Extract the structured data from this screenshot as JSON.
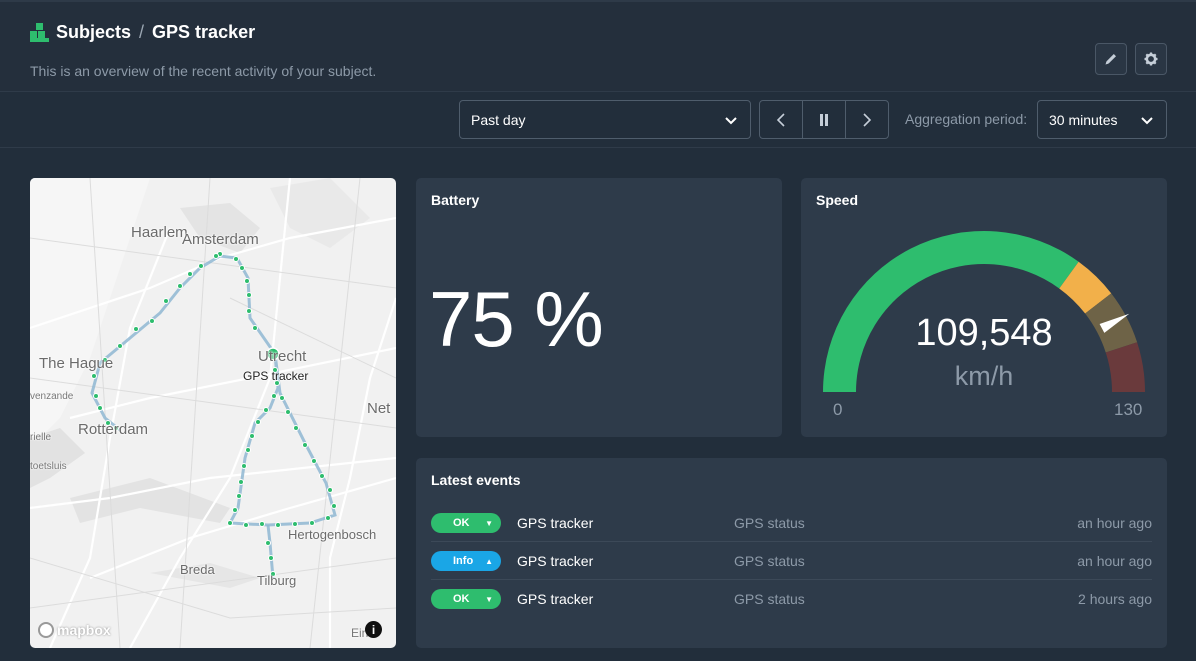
{
  "breadcrumb": {
    "parent": "Subjects",
    "separator": "/",
    "current": "GPS tracker"
  },
  "subtitle": "This is an overview of the recent activity of your subject.",
  "header_actions": {
    "edit_icon": "pencil-icon",
    "settings_icon": "gear-icon"
  },
  "toolbar": {
    "time_range": "Past day",
    "nav": {
      "prev_icon": "chevron-left-icon",
      "pause_icon": "pause-icon",
      "next_icon": "chevron-right-icon"
    },
    "aggregation_label": "Aggregation period:",
    "aggregation_value": "30 minutes"
  },
  "map": {
    "labels": {
      "haarlem": "Haarlem",
      "amsterdam": "Amsterdam",
      "the_hague": "The Hague",
      "utrecht": "Utrecht",
      "rotterdam": "Rotterdam",
      "venzande": "venzande",
      "rielle": "rielle",
      "toetsluis": "toetsluis",
      "net": "Net",
      "hertogenbosch": "Hertogenbosch",
      "breda": "Breda",
      "tilburg": "Tilburg",
      "eindhoven": "Ein"
    },
    "marker_label": "GPS tracker",
    "attribution": "mapbox",
    "info_glyph": "i"
  },
  "battery": {
    "title": "Battery",
    "value": "75 %"
  },
  "speed": {
    "title": "Speed",
    "value": "109,548",
    "unit": "km/h",
    "min_label": "0",
    "max_label": "130",
    "level": 0.8427,
    "colors": {
      "green": "#2ebd6e",
      "orange": "#f2b04a",
      "olive": "#6e6347",
      "red": "#6a3a3c"
    }
  },
  "events": {
    "title": "Latest events",
    "items": [
      {
        "badge": "OK",
        "badge_color": "#2ebd6e",
        "caret": "▼",
        "source": "GPS tracker",
        "type": "GPS status",
        "time": "an hour ago"
      },
      {
        "badge": "Info",
        "badge_color": "#1aa6e6",
        "caret": "▲",
        "source": "GPS tracker",
        "type": "GPS status",
        "time": "an hour ago"
      },
      {
        "badge": "OK",
        "badge_color": "#2ebd6e",
        "caret": "▼",
        "source": "GPS tracker",
        "type": "GPS status",
        "time": "2 hours ago"
      }
    ]
  }
}
